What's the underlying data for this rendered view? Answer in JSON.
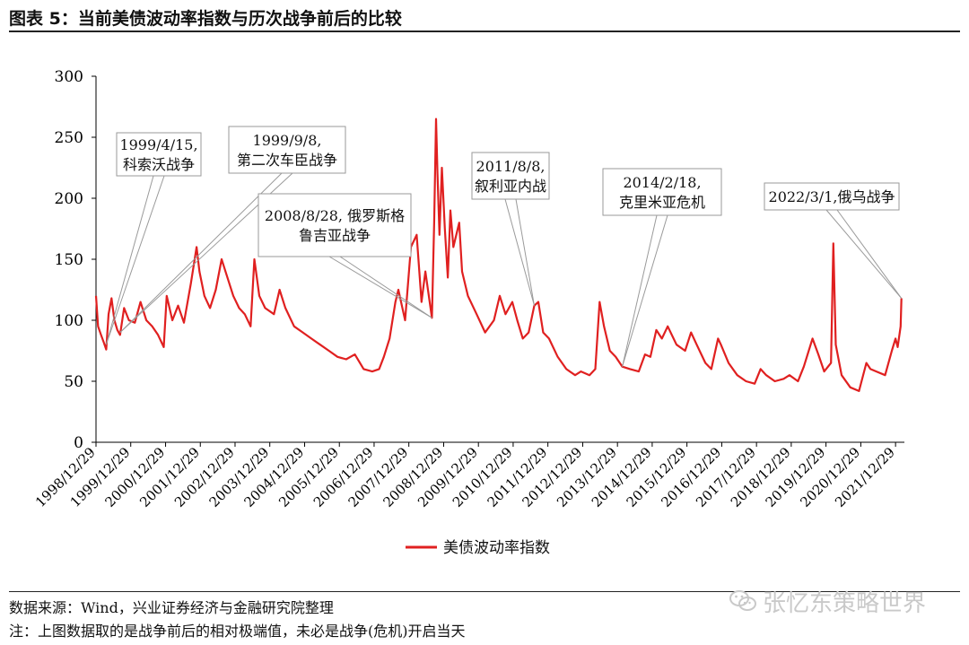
{
  "title": "图表 5：当前美债波动率指数与历次战争前后的比较",
  "source": "数据来源：Wind，兴业证券经济与金融研究院整理",
  "note": "注：上图数据取的是战争前后的相对极端值，未必是战争(危机)开启当天",
  "watermark": "张忆东策略世界",
  "colors": {
    "series": "#e02020",
    "callout_border": "#9a9a9a",
    "axis": "#000000"
  },
  "chart_data": {
    "type": "line",
    "title": "",
    "xlabel": "",
    "ylabel": "",
    "ylim": [
      0,
      300
    ],
    "yticks": [
      0,
      50,
      100,
      150,
      200,
      250,
      300
    ],
    "xlim": [
      "1998-12-29",
      "2022-04-01"
    ],
    "xtick_labels": [
      "1998/12/29",
      "1999/12/29",
      "2000/12/29",
      "2001/12/29",
      "2002/12/29",
      "2003/12/29",
      "2004/12/29",
      "2005/12/29",
      "2006/12/29",
      "2007/12/29",
      "2008/12/29",
      "2009/12/29",
      "2010/12/29",
      "2011/12/29",
      "2012/12/29",
      "2013/12/29",
      "2014/12/29",
      "2015/12/29",
      "2016/12/29",
      "2017/12/29",
      "2018/12/29",
      "2019/12/29",
      "2020/12/29",
      "2021/12/29"
    ],
    "xtick_dates": [
      "1998-12-29",
      "1999-12-29",
      "2000-12-29",
      "2001-12-29",
      "2002-12-29",
      "2003-12-29",
      "2004-12-29",
      "2005-12-29",
      "2006-12-29",
      "2007-12-29",
      "2008-12-29",
      "2009-12-29",
      "2010-12-29",
      "2011-12-29",
      "2012-12-29",
      "2013-12-29",
      "2014-12-29",
      "2015-12-29",
      "2016-12-29",
      "2017-12-29",
      "2018-12-29",
      "2019-12-29",
      "2020-12-29",
      "2021-12-29"
    ],
    "grid": false,
    "legend": "bottom-center",
    "series": [
      {
        "name": "美债波动率指数",
        "points": [
          [
            "1998-12-29",
            120
          ],
          [
            "1999-01-20",
            95
          ],
          [
            "1999-02-20",
            88
          ],
          [
            "1999-03-20",
            82
          ],
          [
            "1999-04-15",
            76
          ],
          [
            "1999-05-10",
            105
          ],
          [
            "1999-06-10",
            118
          ],
          [
            "1999-07-10",
            100
          ],
          [
            "1999-08-10",
            92
          ],
          [
            "1999-09-08",
            88
          ],
          [
            "1999-10-20",
            110
          ],
          [
            "1999-12-10",
            100
          ],
          [
            "2000-02-10",
            98
          ],
          [
            "2000-04-10",
            115
          ],
          [
            "2000-06-10",
            100
          ],
          [
            "2000-08-10",
            95
          ],
          [
            "2000-10-10",
            88
          ],
          [
            "2000-12-10",
            78
          ],
          [
            "2001-01-10",
            120
          ],
          [
            "2001-03-10",
            100
          ],
          [
            "2001-05-10",
            112
          ],
          [
            "2001-07-10",
            98
          ],
          [
            "2001-09-20",
            130
          ],
          [
            "2001-11-20",
            160
          ],
          [
            "2001-12-20",
            140
          ],
          [
            "2002-02-10",
            120
          ],
          [
            "2002-04-10",
            110
          ],
          [
            "2002-06-10",
            125
          ],
          [
            "2002-08-10",
            150
          ],
          [
            "2002-10-10",
            135
          ],
          [
            "2002-12-10",
            120
          ],
          [
            "2003-02-10",
            110
          ],
          [
            "2003-04-10",
            105
          ],
          [
            "2003-06-10",
            95
          ],
          [
            "2003-07-20",
            150
          ],
          [
            "2003-09-10",
            120
          ],
          [
            "2003-11-10",
            110
          ],
          [
            "2004-02-10",
            105
          ],
          [
            "2004-04-10",
            125
          ],
          [
            "2004-06-10",
            110
          ],
          [
            "2004-09-10",
            95
          ],
          [
            "2004-12-10",
            90
          ],
          [
            "2005-03-10",
            85
          ],
          [
            "2005-06-10",
            80
          ],
          [
            "2005-09-10",
            75
          ],
          [
            "2005-12-10",
            70
          ],
          [
            "2006-03-10",
            68
          ],
          [
            "2006-06-10",
            72
          ],
          [
            "2006-09-10",
            60
          ],
          [
            "2006-12-10",
            58
          ],
          [
            "2007-02-20",
            60
          ],
          [
            "2007-04-10",
            70
          ],
          [
            "2007-06-10",
            85
          ],
          [
            "2007-08-10",
            115
          ],
          [
            "2007-09-10",
            125
          ],
          [
            "2007-11-20",
            100
          ],
          [
            "2008-01-20",
            160
          ],
          [
            "2008-03-20",
            170
          ],
          [
            "2008-05-10",
            115
          ],
          [
            "2008-06-20",
            140
          ],
          [
            "2008-08-28",
            102
          ],
          [
            "2008-09-20",
            180
          ],
          [
            "2008-10-10",
            265
          ],
          [
            "2008-10-25",
            220
          ],
          [
            "2008-11-15",
            170
          ],
          [
            "2008-12-10",
            225
          ],
          [
            "2009-01-10",
            175
          ],
          [
            "2009-02-10",
            135
          ],
          [
            "2009-03-10",
            190
          ],
          [
            "2009-04-10",
            160
          ],
          [
            "2009-06-10",
            180
          ],
          [
            "2009-07-10",
            140
          ],
          [
            "2009-09-10",
            120
          ],
          [
            "2009-12-10",
            105
          ],
          [
            "2010-03-10",
            90
          ],
          [
            "2010-06-10",
            100
          ],
          [
            "2010-08-10",
            120
          ],
          [
            "2010-10-10",
            105
          ],
          [
            "2010-12-20",
            115
          ],
          [
            "2011-02-10",
            100
          ],
          [
            "2011-04-10",
            85
          ],
          [
            "2011-06-10",
            90
          ],
          [
            "2011-08-08",
            112
          ],
          [
            "2011-09-20",
            115
          ],
          [
            "2011-11-10",
            90
          ],
          [
            "2012-01-10",
            85
          ],
          [
            "2012-04-10",
            70
          ],
          [
            "2012-07-10",
            60
          ],
          [
            "2012-10-10",
            55
          ],
          [
            "2012-12-10",
            58
          ],
          [
            "2013-03-10",
            55
          ],
          [
            "2013-05-10",
            60
          ],
          [
            "2013-06-25",
            115
          ],
          [
            "2013-08-10",
            95
          ],
          [
            "2013-10-10",
            75
          ],
          [
            "2013-12-10",
            70
          ],
          [
            "2014-02-18",
            62
          ],
          [
            "2014-05-10",
            60
          ],
          [
            "2014-08-10",
            58
          ],
          [
            "2014-10-15",
            72
          ],
          [
            "2014-12-10",
            70
          ],
          [
            "2015-02-10",
            92
          ],
          [
            "2015-04-10",
            85
          ],
          [
            "2015-06-10",
            95
          ],
          [
            "2015-09-10",
            80
          ],
          [
            "2015-12-10",
            75
          ],
          [
            "2016-02-10",
            90
          ],
          [
            "2016-04-10",
            80
          ],
          [
            "2016-07-10",
            65
          ],
          [
            "2016-09-10",
            60
          ],
          [
            "2016-11-20",
            85
          ],
          [
            "2016-12-20",
            80
          ],
          [
            "2017-03-10",
            65
          ],
          [
            "2017-06-10",
            55
          ],
          [
            "2017-09-10",
            50
          ],
          [
            "2017-12-10",
            48
          ],
          [
            "2018-02-10",
            60
          ],
          [
            "2018-04-10",
            55
          ],
          [
            "2018-07-10",
            50
          ],
          [
            "2018-10-10",
            52
          ],
          [
            "2018-12-10",
            55
          ],
          [
            "2019-03-10",
            50
          ],
          [
            "2019-05-10",
            62
          ],
          [
            "2019-08-10",
            85
          ],
          [
            "2019-10-10",
            72
          ],
          [
            "2019-12-10",
            58
          ],
          [
            "2020-02-20",
            65
          ],
          [
            "2020-03-15",
            163
          ],
          [
            "2020-04-10",
            80
          ],
          [
            "2020-06-10",
            55
          ],
          [
            "2020-09-10",
            45
          ],
          [
            "2020-12-10",
            42
          ],
          [
            "2021-02-25",
            65
          ],
          [
            "2021-04-10",
            60
          ],
          [
            "2021-06-10",
            58
          ],
          [
            "2021-09-10",
            55
          ],
          [
            "2021-11-20",
            75
          ],
          [
            "2021-12-29",
            85
          ],
          [
            "2022-01-20",
            78
          ],
          [
            "2022-02-20",
            95
          ],
          [
            "2022-03-01",
            118
          ]
        ]
      }
    ],
    "annotations": [
      {
        "lines": [
          "1999/4/15,",
          "科索沃战争"
        ],
        "date": "1999-04-15",
        "value": 80
      },
      {
        "lines": [
          "1999/9/8,",
          "第二次车臣战争"
        ],
        "date": "1999-09-08",
        "value": 90
      },
      {
        "lines": [
          "2008/8/28, 俄罗斯格",
          "鲁吉亚战争"
        ],
        "date": "2008-08-28",
        "value": 102
      },
      {
        "lines": [
          "2011/8/8,",
          "叙利亚内战"
        ],
        "date": "2011-08-08",
        "value": 112
      },
      {
        "lines": [
          "2014/2/18,",
          "克里米亚危机"
        ],
        "date": "2014-02-18",
        "value": 62
      },
      {
        "lines": [
          "2022/3/1,俄乌战争"
        ],
        "date": "2022-03-01",
        "value": 118
      }
    ]
  }
}
